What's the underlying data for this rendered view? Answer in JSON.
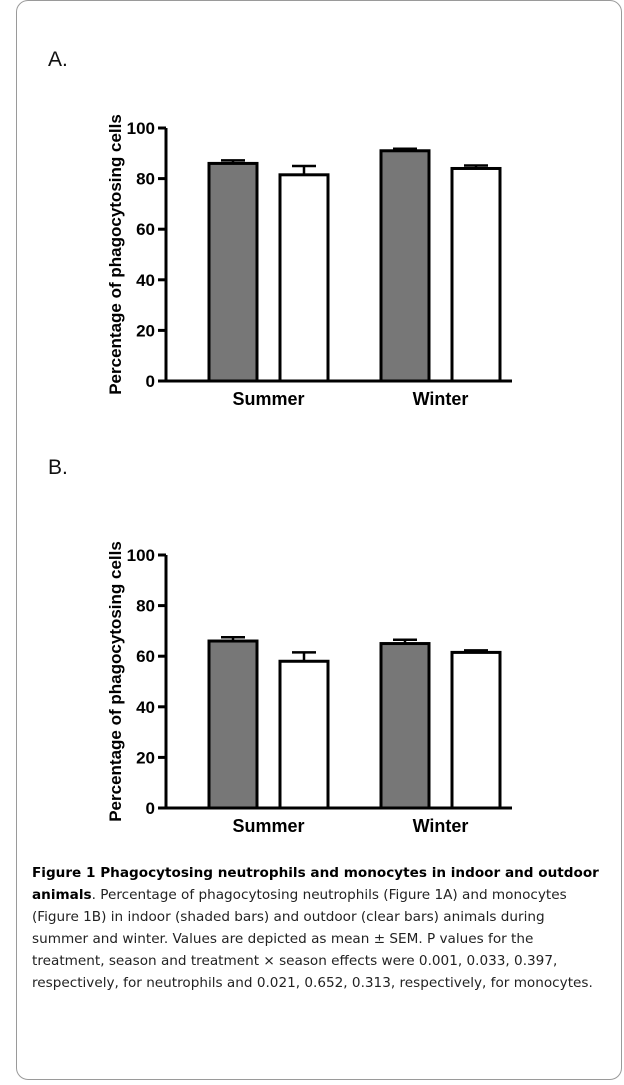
{
  "panels": [
    {
      "label": "A."
    },
    {
      "label": "B."
    }
  ],
  "chart_data": [
    {
      "type": "bar",
      "categories": [
        "Summer",
        "Winter"
      ],
      "series": [
        {
          "values": [
            86,
            91
          ],
          "errors": [
            1.2,
            0.8
          ],
          "fill": "#777777"
        },
        {
          "values": [
            81.5,
            84
          ],
          "errors": [
            3.5,
            1.2
          ],
          "fill": "#ffffff"
        }
      ],
      "ylabel": "Percentage of phagocytosing cells",
      "ylim": [
        0,
        100
      ],
      "yticks": [
        "0",
        "20",
        "40",
        "60",
        "80",
        "100"
      ]
    },
    {
      "type": "bar",
      "categories": [
        "Summer",
        "Winter"
      ],
      "series": [
        {
          "values": [
            66,
            65
          ],
          "errors": [
            1.5,
            1.5
          ],
          "fill": "#777777"
        },
        {
          "values": [
            58,
            61.5
          ],
          "errors": [
            3.5,
            0.8
          ],
          "fill": "#ffffff"
        }
      ],
      "ylabel": "Percentage of phagocytosing cells",
      "ylim": [
        0,
        100
      ],
      "yticks": [
        "0",
        "20",
        "40",
        "60",
        "80",
        "100"
      ]
    }
  ],
  "caption": {
    "title": "Figure 1 Phagocytosing neutrophils and monocytes in indoor and outdoor animals",
    "text": ". Percentage of phagocytosing neutrophils (Figure 1A) and monocytes (Figure 1B) in indoor (shaded bars) and outdoor (clear bars) animals during summer and winter. Values are depicted as mean ± SEM. P values for the treatment, season and treatment × season effects were 0.001, 0.033, 0.397, respectively, for neutrophils and 0.021, 0.652, 0.313, respectively, for monocytes."
  }
}
